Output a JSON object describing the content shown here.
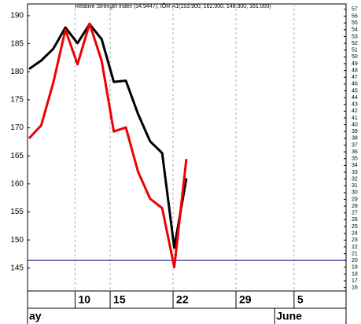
{
  "chart_data": {
    "type": "line",
    "title": "Relative Strength Index (34.9447), IÕR-A1(153.900, 162.000, 148.300, 161.000)",
    "x": [
      0,
      1,
      2,
      3,
      4,
      5,
      6,
      7,
      8,
      9,
      10,
      11,
      12,
      13
    ],
    "xlim": [
      -0.13,
      26.2
    ],
    "xticks": [
      {
        "value": 3.8,
        "label": "10"
      },
      {
        "value": 6.7,
        "label": "15"
      },
      {
        "value": 11.9,
        "label": "22"
      },
      {
        "value": 17.1,
        "label": "29"
      },
      {
        "value": 21.9,
        "label": "5"
      }
    ],
    "month_ticks": [
      {
        "value": -0.13,
        "label": "ay"
      },
      {
        "value": 20.3,
        "label": "June"
      }
    ],
    "series": [
      {
        "name": "IÕR-A1",
        "color": "#000000",
        "values": [
          180.5,
          182,
          184.1,
          187.9,
          185.1,
          188.5,
          185.8,
          178.2,
          178.4,
          172.5,
          167.6,
          165.5,
          148.6,
          161
        ]
      },
      {
        "name": "Relative Strength Index",
        "color": "#ee0000",
        "axis": "y2",
        "values": [
          38,
          39.9,
          46.2,
          54,
          48.9,
          54.9,
          49.4,
          39,
          39.6,
          33.1,
          29.1,
          27.7,
          19,
          34.9447
        ]
      }
    ],
    "ylim": [
      140.9,
      192.1
    ],
    "yticks": [
      145,
      150,
      155,
      160,
      165,
      170,
      175,
      180,
      185,
      190
    ],
    "y2lim": [
      15.5,
      57.8
    ],
    "y2ticks": [
      16,
      17,
      18,
      19,
      20,
      21,
      22,
      23,
      24,
      25,
      26,
      27,
      28,
      29,
      30,
      31,
      32,
      33,
      34,
      35,
      36,
      37,
      38,
      39,
      40,
      41,
      42,
      43,
      44,
      45,
      46,
      47,
      48,
      49,
      50,
      51,
      52,
      53,
      54,
      55,
      56,
      57
    ],
    "hline": {
      "axis": "y2",
      "value": 20,
      "color": "#000080"
    },
    "grid": true
  }
}
